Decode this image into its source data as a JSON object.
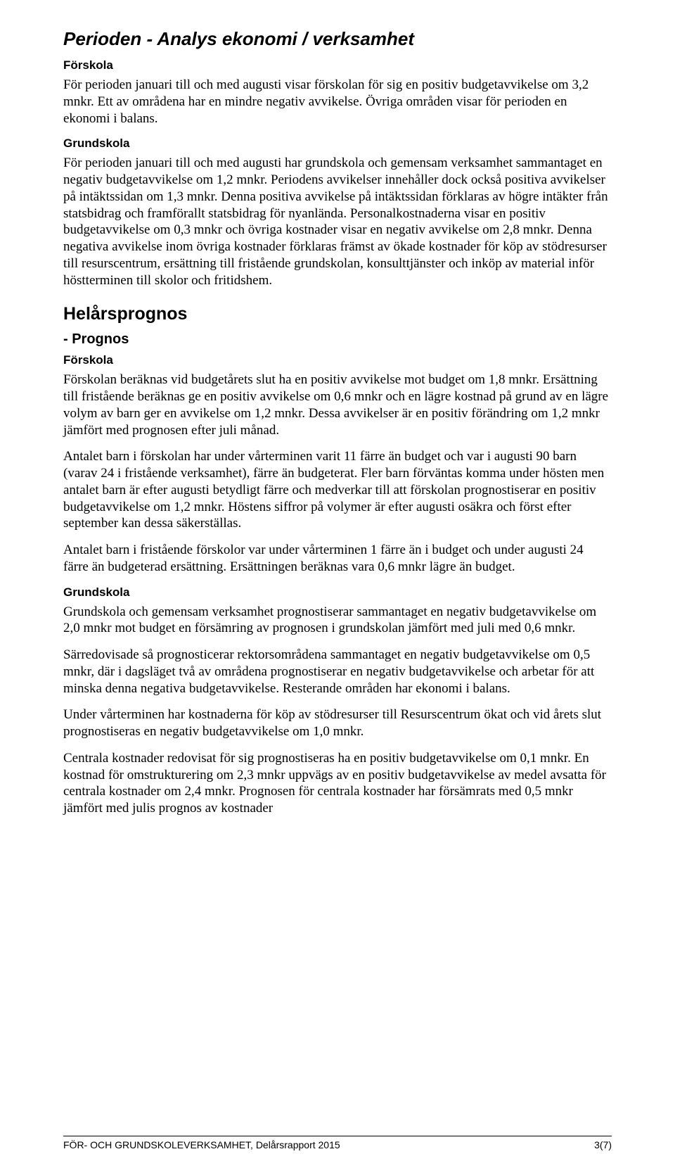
{
  "title_section": "Perioden - Analys ekonomi / verksamhet",
  "sec1": {
    "h_forskola": "Förskola",
    "p_forskola": "För perioden januari till och med augusti visar förskolan för sig en positiv budgetavvikelse om 3,2 mnkr. Ett av områdena har en mindre negativ avvikelse. Övriga områden visar för perioden en ekonomi i balans.",
    "h_grundskola": "Grundskola",
    "p_grundskola": "För perioden januari till och med augusti har grundskola och gemensam verksamhet sammantaget en negativ budgetavvikelse om 1,2 mnkr. Periodens avvikelser innehåller dock också positiva avvikelser på intäktssidan om 1,3 mnkr. Denna positiva avvikelse på intäktssidan förklaras av högre intäkter från statsbidrag och framförallt statsbidrag för nyanlända. Personalkostnaderna visar en positiv budgetavvikelse om 0,3 mnkr och övriga kostnader visar en negativ avvikelse om 2,8 mnkr. Denna negativa avvikelse inom övriga kostnader förklaras främst av ökade kostnader för köp av stödresurser till resurscentrum, ersättning till fristående grundskolan, konsulttjänster och inköp av material inför höstterminen till skolor och fritidshem."
  },
  "h_helars": "Helårsprognos",
  "h_prognos": " - Prognos",
  "sec2": {
    "h_forskola": "Förskola",
    "p1": "Förskolan beräknas vid budgetårets slut ha en positiv avvikelse mot budget om 1,8 mnkr. Ersättning till fristående beräknas ge en positiv avvikelse om 0,6 mnkr och en lägre kostnad på grund av en lägre volym av barn ger en avvikelse om 1,2 mnkr. Dessa avvikelser är en positiv förändring om 1,2 mnkr jämfört med prognosen efter juli månad.",
    "p2": "Antalet barn i förskolan har under vårterminen varit 11 färre än budget och var i augusti 90 barn (varav 24 i fristående verksamhet), färre än budgeterat. Fler barn förväntas komma under hösten men antalet barn är efter augusti betydligt färre och medverkar till att förskolan prognostiserar en positiv budgetavvikelse om 1,2 mnkr. Höstens siffror på volymer är efter augusti osäkra och först efter september kan dessa säkerställas.",
    "p3": "Antalet barn i fristående förskolor var under vårterminen 1 färre än i budget och under augusti 24 färre än budgeterad ersättning. Ersättningen beräknas vara 0,6 mnkr lägre än budget.",
    "h_grundskola": "Grundskola",
    "p4": "Grundskola och gemensam verksamhet prognostiserar sammantaget en negativ budgetavvikelse om 2,0 mnkr mot budget en försämring av prognosen i grundskolan jämfört med juli med 0,6 mnkr.",
    "p5": "Särredovisade så prognosticerar rektorsområdena sammantaget en negativ budgetavvikelse om 0,5 mnkr, där i dagsläget två av områdena prognostiserar en negativ budgetavvikelse och arbetar för att minska denna negativa budgetavvikelse. Resterande områden har ekonomi i balans.",
    "p6": "Under vårterminen har kostnaderna för köp av stödresurser till Resurscentrum ökat och vid årets slut prognostiseras en negativ budgetavvikelse om 1,0 mnkr.",
    "p7": "Centrala kostnader redovisat för sig prognostiseras ha en positiv budgetavvikelse om 0,1 mnkr. En kostnad för omstrukturering om 2,3 mnkr uppvägs av en positiv budgetavvikelse av medel avsatta för centrala kostnader om 2,4 mnkr. Prognosen för centrala kostnader har försämrats med 0,5 mnkr jämfört med julis prognos av kostnader"
  },
  "footer": {
    "left": "FÖR- OCH GRUNDSKOLEVERKSAMHET, Delårsrapport 2015",
    "right": "3(7)"
  }
}
